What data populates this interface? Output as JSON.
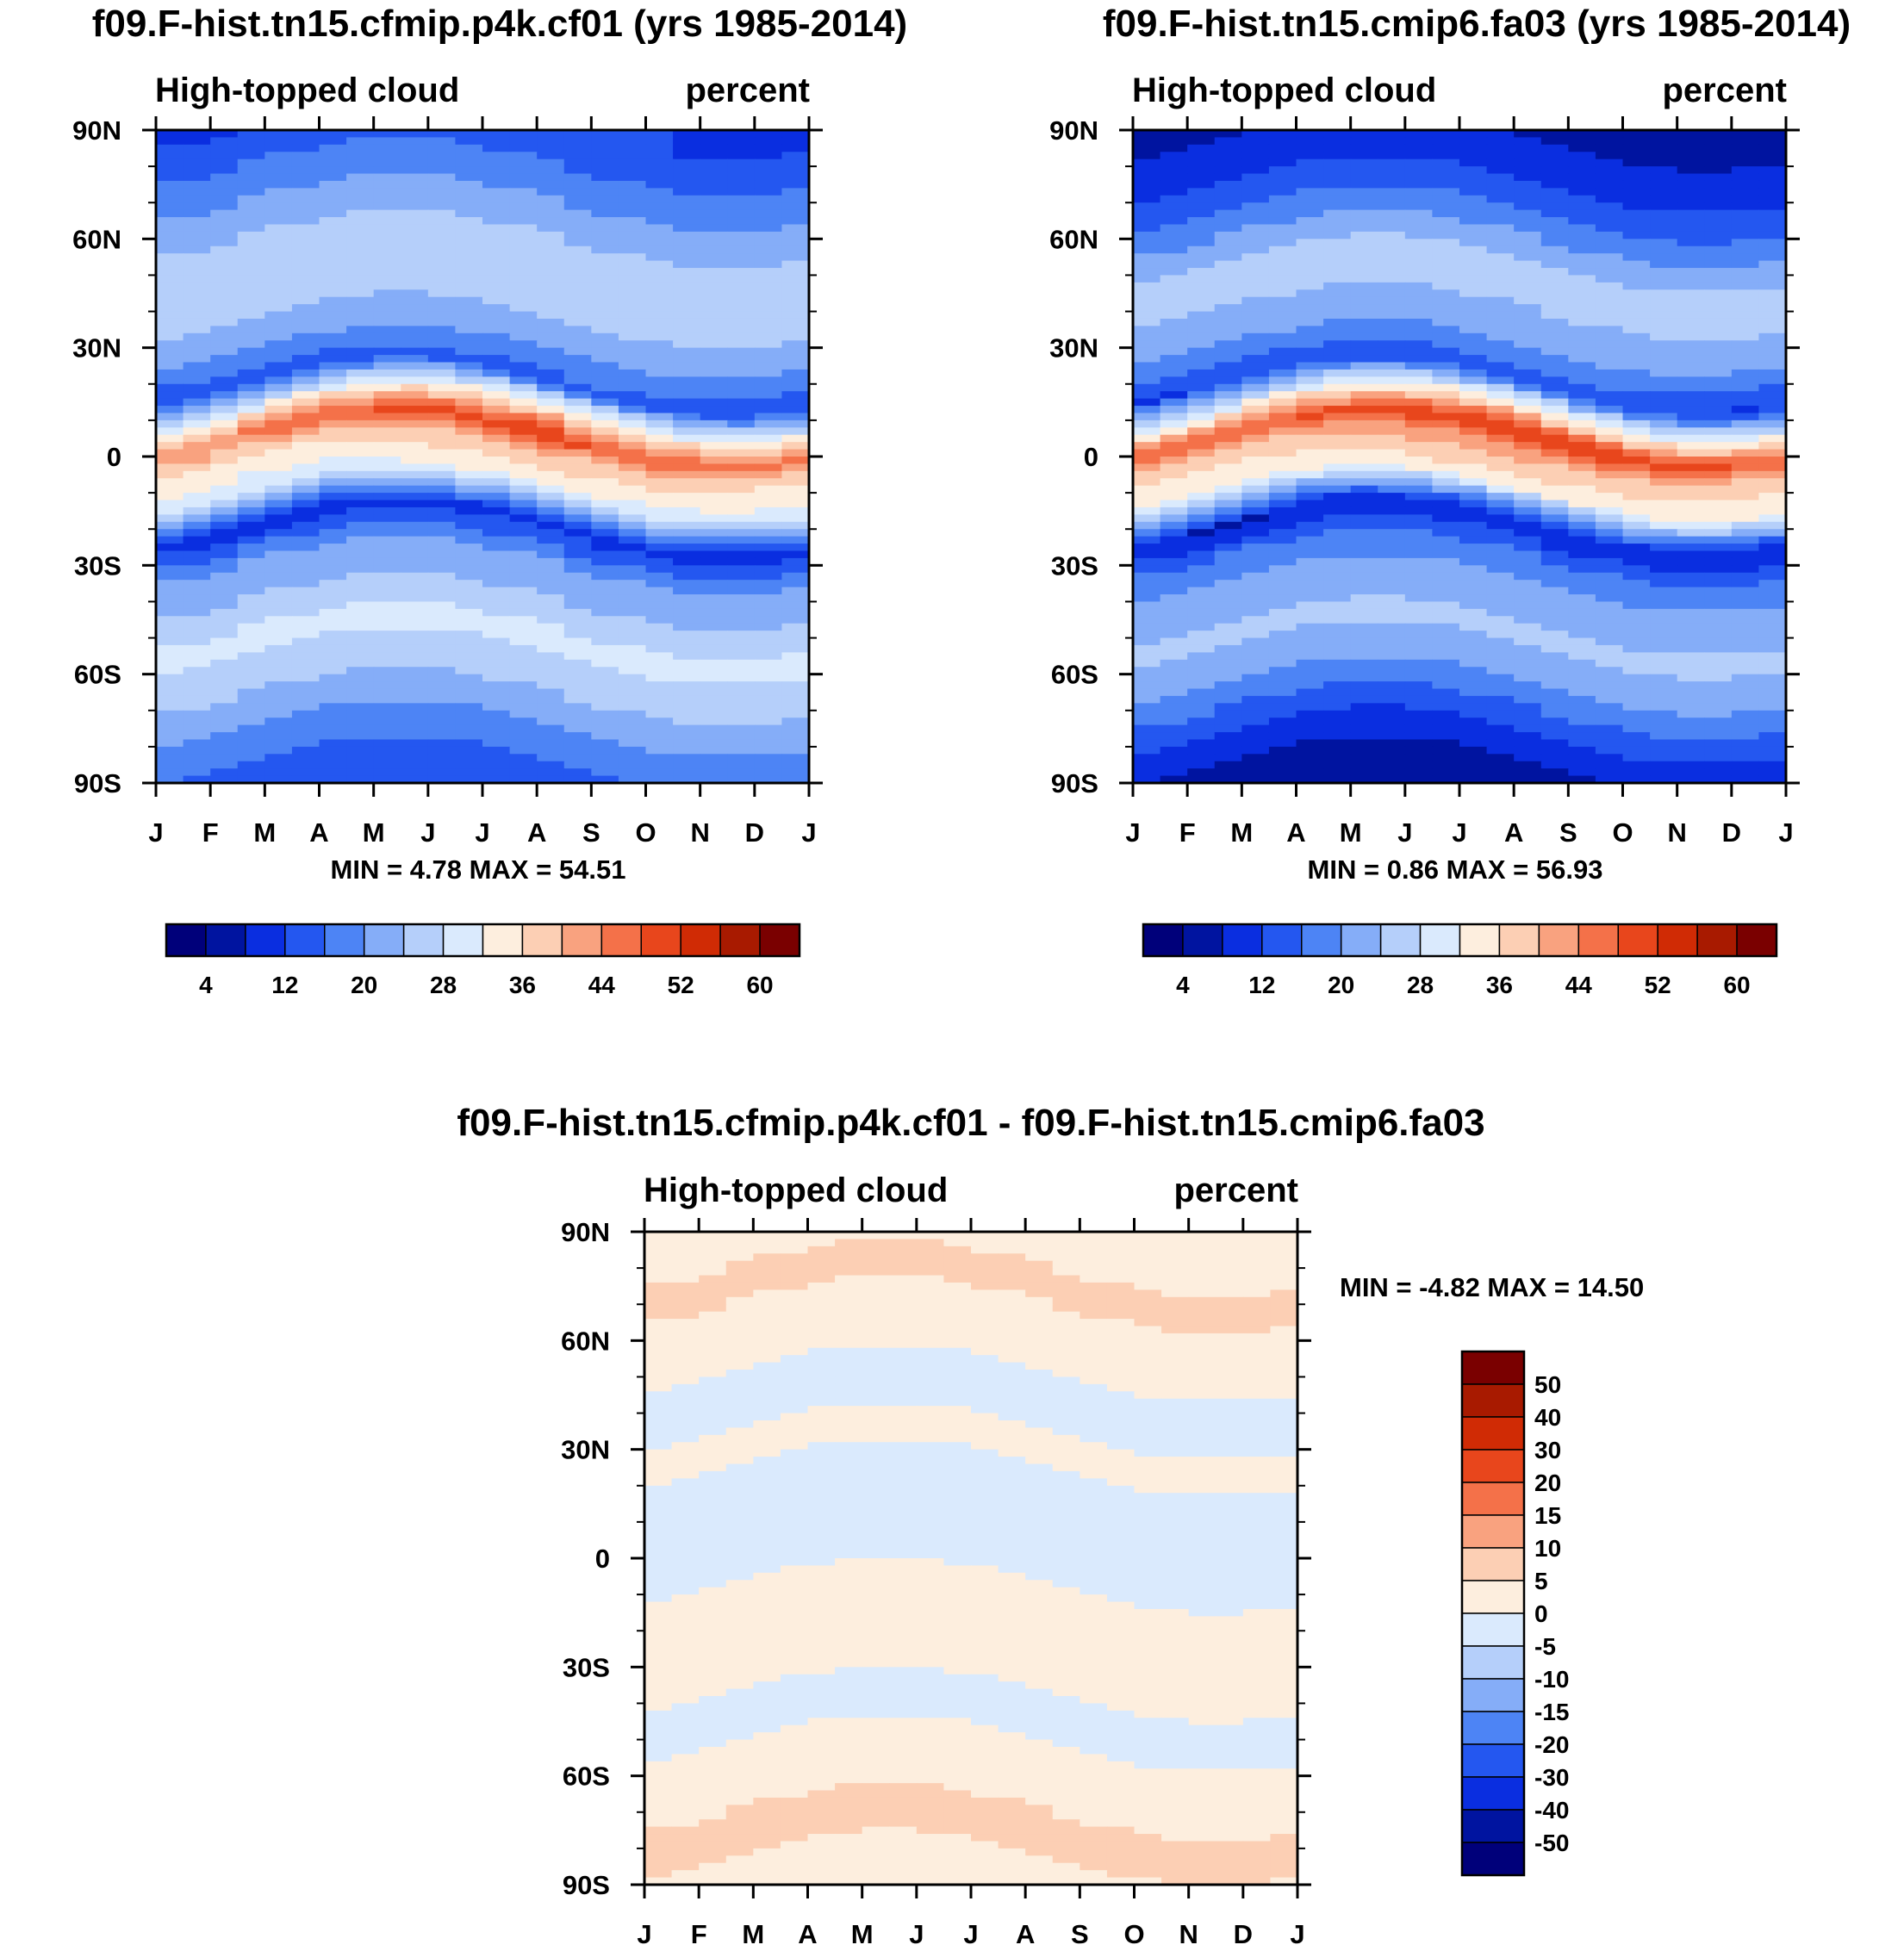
{
  "chart_data": [
    {
      "type": "heatmap",
      "title": "f09.F-hist.tn15.cfmip.p4k.cf01 (yrs 1985-2014)",
      "left_label": "High-topped cloud",
      "right_label": "percent",
      "x_ticks": [
        "J",
        "F",
        "M",
        "A",
        "M",
        "J",
        "J",
        "A",
        "S",
        "O",
        "N",
        "D",
        "J"
      ],
      "y_ticks": [
        "90N",
        "60N",
        "30N",
        "0",
        "30S",
        "60S",
        "90S"
      ],
      "xlim": [
        0,
        12
      ],
      "ylim": [
        -90,
        90
      ],
      "stats": "MIN =   4.78 MAX =  54.51",
      "colorbar_levels": [
        4,
        8,
        12,
        16,
        20,
        24,
        28,
        32,
        36,
        40,
        44,
        48,
        52,
        56,
        60
      ],
      "colorbar_labels": [
        "4",
        "12",
        "20",
        "28",
        "36",
        "44",
        "52",
        "60"
      ],
      "colors": [
        "#00007a",
        "#0014a0",
        "#0a2ee0",
        "#2457f0",
        "#4d84f5",
        "#85adf8",
        "#b5cffa",
        "#daeafd",
        "#fdeede",
        "#fccfb4",
        "#f9a27f",
        "#f47149",
        "#e8461c",
        "#d02b05",
        "#a81a00",
        "#7a0000"
      ],
      "zonal_profile": [
        {
          "lat": -90,
          "value": 14
        },
        {
          "lat": -80,
          "value": 18
        },
        {
          "lat": -70,
          "value": 22
        },
        {
          "lat": -60,
          "value": 27
        },
        {
          "lat": -50,
          "value": 29
        },
        {
          "lat": -40,
          "value": 24
        },
        {
          "lat": -30,
          "value": 20
        },
        {
          "lat": -20,
          "value": 10
        },
        {
          "lat": -10,
          "value": 30
        },
        {
          "lat": 0,
          "value": 38
        },
        {
          "lat": 5,
          "value": 48
        },
        {
          "lat": 10,
          "value": 38
        },
        {
          "lat": 20,
          "value": 14
        },
        {
          "lat": 30,
          "value": 21
        },
        {
          "lat": 40,
          "value": 25
        },
        {
          "lat": 50,
          "value": 28
        },
        {
          "lat": 60,
          "value": 24
        },
        {
          "lat": 70,
          "value": 20
        },
        {
          "lat": 80,
          "value": 16
        },
        {
          "lat": 90,
          "value": 12
        }
      ]
    },
    {
      "type": "heatmap",
      "title": "f09.F-hist.tn15.cmip6.fa03 (yrs 1985-2014)",
      "left_label": "High-topped cloud",
      "right_label": "percent",
      "x_ticks": [
        "J",
        "F",
        "M",
        "A",
        "M",
        "J",
        "J",
        "A",
        "S",
        "O",
        "N",
        "D",
        "J"
      ],
      "y_ticks": [
        "90N",
        "60N",
        "30N",
        "0",
        "30S",
        "60S",
        "90S"
      ],
      "xlim": [
        0,
        12
      ],
      "ylim": [
        -90,
        90
      ],
      "stats": "MIN =   0.86 MAX =  56.93",
      "colorbar_levels": [
        4,
        8,
        12,
        16,
        20,
        24,
        28,
        32,
        36,
        40,
        44,
        48,
        52,
        56,
        60
      ],
      "colorbar_labels": [
        "4",
        "12",
        "20",
        "28",
        "36",
        "44",
        "52",
        "60"
      ],
      "colors": [
        "#00007a",
        "#0014a0",
        "#0a2ee0",
        "#2457f0",
        "#4d84f5",
        "#85adf8",
        "#b5cffa",
        "#daeafd",
        "#fdeede",
        "#fccfb4",
        "#f9a27f",
        "#f47149",
        "#e8461c",
        "#d02b05",
        "#a81a00",
        "#7a0000"
      ],
      "zonal_profile": [
        {
          "lat": -90,
          "value": 6
        },
        {
          "lat": -80,
          "value": 10
        },
        {
          "lat": -70,
          "value": 16
        },
        {
          "lat": -60,
          "value": 22
        },
        {
          "lat": -50,
          "value": 25
        },
        {
          "lat": -40,
          "value": 22
        },
        {
          "lat": -30,
          "value": 18
        },
        {
          "lat": -20,
          "value": 8
        },
        {
          "lat": -10,
          "value": 32
        },
        {
          "lat": 0,
          "value": 40
        },
        {
          "lat": 5,
          "value": 50
        },
        {
          "lat": 10,
          "value": 38
        },
        {
          "lat": 20,
          "value": 13
        },
        {
          "lat": 30,
          "value": 20
        },
        {
          "lat": 40,
          "value": 24
        },
        {
          "lat": 50,
          "value": 26
        },
        {
          "lat": 60,
          "value": 20
        },
        {
          "lat": 70,
          "value": 14
        },
        {
          "lat": 80,
          "value": 10
        },
        {
          "lat": 90,
          "value": 7
        }
      ]
    },
    {
      "type": "heatmap",
      "title": "f09.F-hist.tn15.cfmip.p4k.cf01 - f09.F-hist.tn15.cmip6.fa03",
      "left_label": "High-topped cloud",
      "right_label": "percent",
      "x_ticks": [
        "J",
        "F",
        "M",
        "A",
        "M",
        "J",
        "J",
        "A",
        "S",
        "O",
        "N",
        "D",
        "J"
      ],
      "y_ticks": [
        "90N",
        "60N",
        "30N",
        "0",
        "30S",
        "60S",
        "90S"
      ],
      "xlim": [
        0,
        12
      ],
      "ylim": [
        -90,
        90
      ],
      "stats": "MIN =  -4.82 MAX =  14.50",
      "colorbar_levels": [
        -50,
        -40,
        -30,
        -20,
        -15,
        -10,
        -5,
        0,
        5,
        10,
        15,
        20,
        30,
        40,
        50
      ],
      "colorbar_labels": [
        "50",
        "40",
        "30",
        "20",
        "15",
        "10",
        "5",
        "0",
        "-5",
        "-10",
        "-15",
        "-20",
        "-30",
        "-40",
        "-50"
      ],
      "colors": [
        "#00007a",
        "#0014a0",
        "#0a2ee0",
        "#2457f0",
        "#4d84f5",
        "#85adf8",
        "#b5cffa",
        "#daeafd",
        "#fdeede",
        "#fccfb4",
        "#f9a27f",
        "#f47149",
        "#e8461c",
        "#d02b05",
        "#a81a00",
        "#7a0000"
      ],
      "zonal_profile": [
        {
          "lat": -90,
          "value": 4
        },
        {
          "lat": -75,
          "value": 6
        },
        {
          "lat": -60,
          "value": 3
        },
        {
          "lat": -45,
          "value": -2
        },
        {
          "lat": -30,
          "value": 2
        },
        {
          "lat": -15,
          "value": 1
        },
        {
          "lat": 0,
          "value": -1
        },
        {
          "lat": 15,
          "value": -2
        },
        {
          "lat": 30,
          "value": 1
        },
        {
          "lat": 45,
          "value": -2
        },
        {
          "lat": 60,
          "value": 3
        },
        {
          "lat": 75,
          "value": 6
        },
        {
          "lat": 90,
          "value": 3
        }
      ]
    }
  ]
}
